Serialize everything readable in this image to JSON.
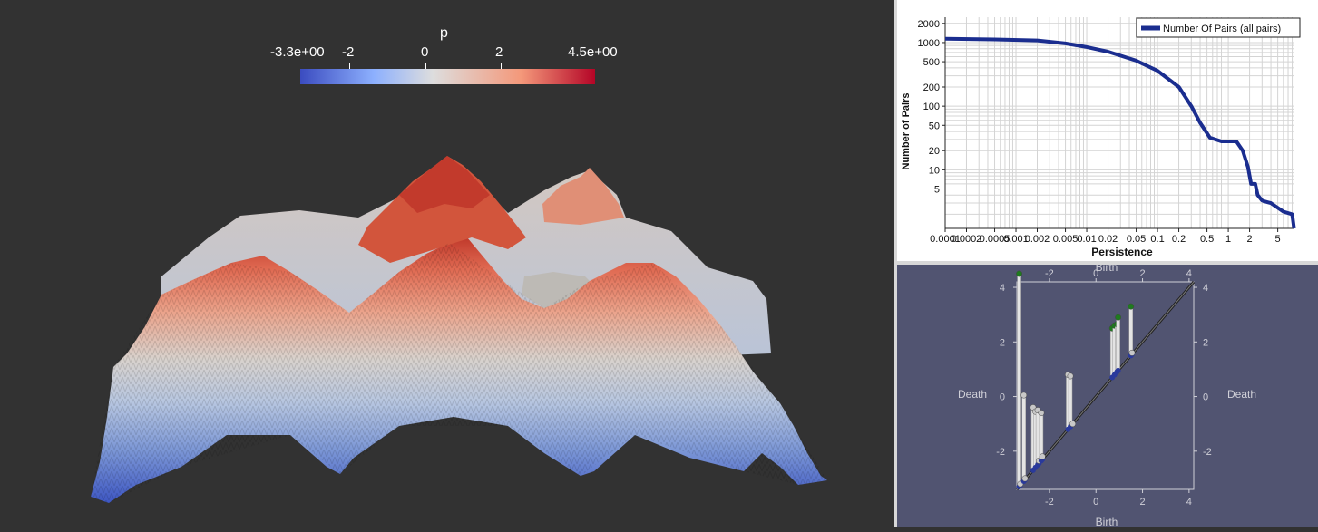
{
  "scalar_bar": {
    "title": "p",
    "min_label": "-3.3e+00",
    "max_label": "4.5e+00",
    "ticks": [
      "-2",
      "0",
      "2"
    ],
    "colors": [
      "#3b4cc0",
      "#8db0fe",
      "#dddddd",
      "#f4987a",
      "#b40426"
    ]
  },
  "chart_data": {
    "type": "line",
    "x_scale": "log",
    "y_scale": "log",
    "xlabel": "Persistence",
    "ylabel": "Number of Pairs",
    "x_tick_labels": [
      "0.0001",
      "0.0002",
      "0.0005",
      "0.001",
      "0.002",
      "0.005",
      "0.01",
      "0.02",
      "0.05",
      "0.1",
      "0.2",
      "0.5",
      "1",
      "2",
      "5"
    ],
    "y_tick_labels": [
      "5",
      "10",
      "20",
      "50",
      "100",
      "200",
      "500",
      "1000",
      "2000"
    ],
    "grid": true,
    "legend_position": "top-right",
    "series": [
      {
        "name": "Number Of Pairs (all pairs)",
        "color": "#1a2d8f",
        "x": [
          0.0001,
          0.0005,
          0.002,
          0.005,
          0.01,
          0.02,
          0.05,
          0.1,
          0.2,
          0.3,
          0.4,
          0.55,
          0.8,
          1.0,
          1.3,
          1.6,
          1.9,
          2.1,
          2.4,
          2.6,
          3.0,
          3.2,
          4.0,
          6.0,
          8.0,
          8.5
        ],
        "y": [
          1150,
          1120,
          1080,
          970,
          850,
          720,
          520,
          360,
          200,
          100,
          55,
          32,
          28,
          28,
          28,
          20,
          11,
          6,
          6,
          4,
          3.3,
          3.2,
          3.0,
          2.2,
          2.0,
          1.2
        ]
      }
    ]
  },
  "persistence_diagram": {
    "x_axis_label": "Birth",
    "y_axis_label": "Death",
    "tick_labels": [
      "-2",
      "0",
      "2",
      "4"
    ],
    "pairs": [
      [
        -3.3,
        4.5
      ],
      [
        -3.25,
        -3.2
      ],
      [
        -3.1,
        0.05
      ],
      [
        -3.05,
        -3.0
      ],
      [
        -2.7,
        -0.4
      ],
      [
        -2.6,
        -0.55
      ],
      [
        -2.5,
        -0.5
      ],
      [
        -2.45,
        -2.35
      ],
      [
        -2.35,
        -0.6
      ],
      [
        -2.3,
        -2.2
      ],
      [
        -1.2,
        0.8
      ],
      [
        -1.1,
        0.75
      ],
      [
        -1.0,
        -1.0
      ],
      [
        0.7,
        2.5
      ],
      [
        0.8,
        2.6
      ],
      [
        0.9,
        2.65
      ],
      [
        0.95,
        2.9
      ],
      [
        1.5,
        3.3
      ],
      [
        1.55,
        1.6
      ]
    ]
  }
}
